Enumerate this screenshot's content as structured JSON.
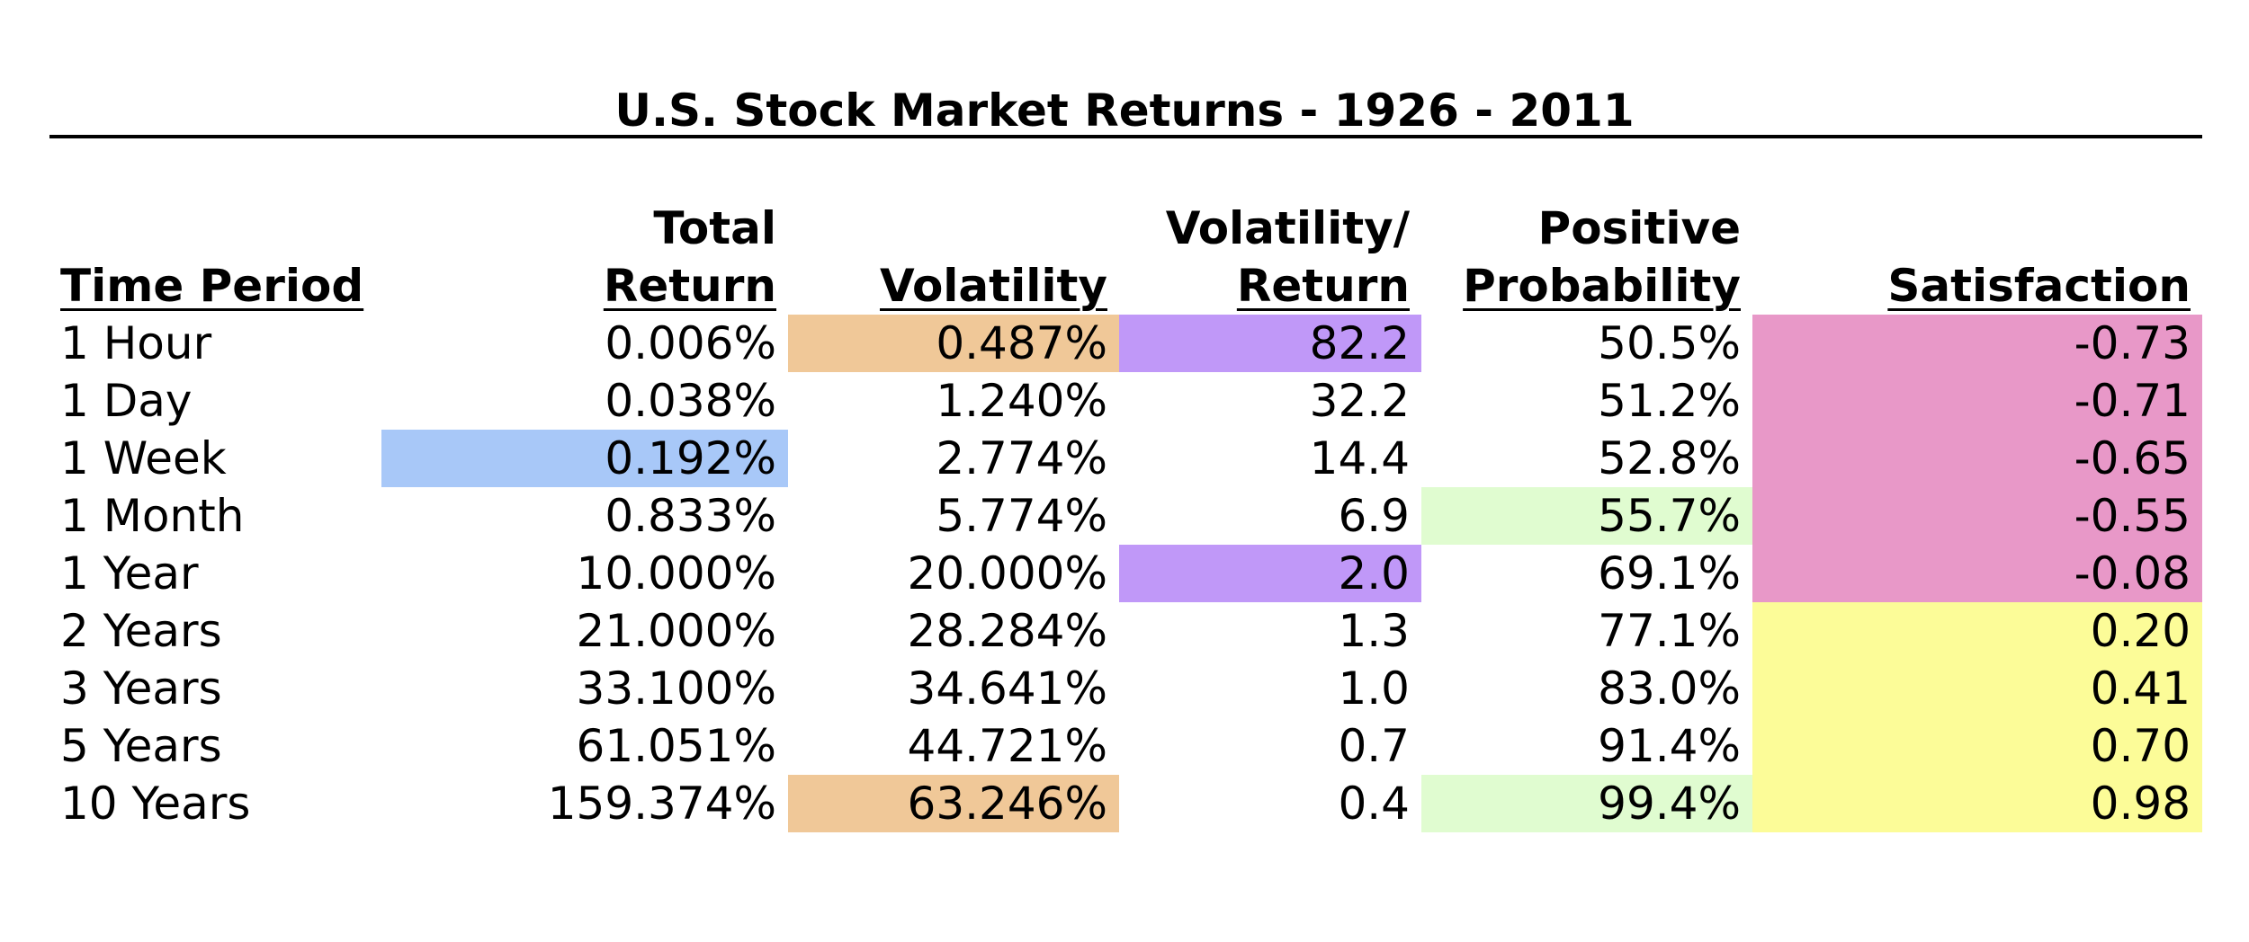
{
  "colors": {
    "orange": "#f0c898",
    "purple": "#c098f8",
    "blue": "#a8c8f8",
    "green": "#e0fcd0",
    "pink": "#e898c8",
    "yellow": "#fcfc98"
  },
  "chart_data": {
    "type": "table",
    "title": "U.S. Stock Market Returns - 1926 - 2011",
    "columns": [
      {
        "line1": "",
        "line2": "Time Period"
      },
      {
        "line1": "Total",
        "line2": "Return"
      },
      {
        "line1": "",
        "line2": "Volatility"
      },
      {
        "line1": "Volatility/",
        "line2": "Return"
      },
      {
        "line1": "Positive",
        "line2": "Probability"
      },
      {
        "line1": "",
        "line2": "Satisfaction"
      }
    ],
    "rows": [
      [
        "1 Hour",
        "0.006%",
        "0.487%",
        "82.2",
        "50.5%",
        "-0.73"
      ],
      [
        "1 Day",
        "0.038%",
        "1.240%",
        "32.2",
        "51.2%",
        "-0.71"
      ],
      [
        "1 Week",
        "0.192%",
        "2.774%",
        "14.4",
        "52.8%",
        "-0.65"
      ],
      [
        "1 Month",
        "0.833%",
        "5.774%",
        "6.9",
        "55.7%",
        "-0.55"
      ],
      [
        "1 Year",
        "10.000%",
        "20.000%",
        "2.0",
        "69.1%",
        "-0.08"
      ],
      [
        "2 Years",
        "21.000%",
        "28.284%",
        "1.3",
        "77.1%",
        "0.20"
      ],
      [
        "3 Years",
        "33.100%",
        "34.641%",
        "1.0",
        "83.0%",
        "0.41"
      ],
      [
        "5 Years",
        "61.051%",
        "44.721%",
        "0.7",
        "91.4%",
        "0.70"
      ],
      [
        "10 Years",
        "159.374%",
        "63.246%",
        "0.4",
        "99.4%",
        "0.98"
      ]
    ],
    "highlights": [
      {
        "row": 0,
        "col": 2,
        "color": "orange"
      },
      {
        "row": 8,
        "col": 2,
        "color": "orange"
      },
      {
        "row": 0,
        "col": 3,
        "color": "purple"
      },
      {
        "row": 4,
        "col": 3,
        "color": "purple"
      },
      {
        "row": 2,
        "col": 1,
        "color": "blue"
      },
      {
        "row": 3,
        "col": 4,
        "color": "green"
      },
      {
        "row": 8,
        "col": 4,
        "color": "green"
      },
      {
        "row": 0,
        "col": 5,
        "color": "pink"
      },
      {
        "row": 1,
        "col": 5,
        "color": "pink"
      },
      {
        "row": 2,
        "col": 5,
        "color": "pink"
      },
      {
        "row": 3,
        "col": 5,
        "color": "pink"
      },
      {
        "row": 4,
        "col": 5,
        "color": "pink"
      },
      {
        "row": 5,
        "col": 5,
        "color": "yellow"
      },
      {
        "row": 6,
        "col": 5,
        "color": "yellow"
      },
      {
        "row": 7,
        "col": 5,
        "color": "yellow"
      },
      {
        "row": 8,
        "col": 5,
        "color": "yellow"
      }
    ]
  }
}
